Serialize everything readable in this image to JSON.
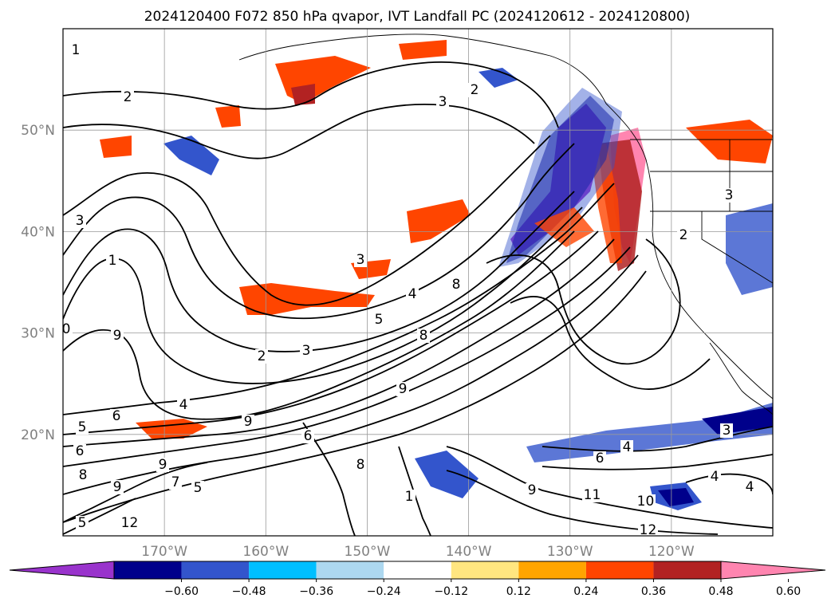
{
  "title": "2024120400 F072 850 hPa qvapor, IVT Landfall PC (2024120612 - 2024120800)",
  "map": {
    "lon_range": [
      -180,
      -110
    ],
    "lat_range": [
      10,
      60
    ],
    "lat_ticks": [
      {
        "value": 20,
        "label": "20°N"
      },
      {
        "value": 30,
        "label": "30°N"
      },
      {
        "value": 40,
        "label": "40°N"
      },
      {
        "value": 50,
        "label": "50°N"
      }
    ],
    "lon_ticks": [
      {
        "value": -170,
        "label": "170°W"
      },
      {
        "value": -160,
        "label": "160°W"
      },
      {
        "value": -150,
        "label": "150°W"
      },
      {
        "value": -140,
        "label": "140°W"
      },
      {
        "value": -130,
        "label": "130°W"
      },
      {
        "value": -120,
        "label": "120°W"
      }
    ],
    "grid": true
  },
  "colorbar": {
    "extend": "both",
    "colors": [
      "#9933cc",
      "#00008b",
      "#3355cc",
      "#00bfff",
      "#add8f0",
      "#ffffff",
      "#ffe680",
      "#ffa500",
      "#ff4500",
      "#b22222",
      "#ff85b0"
    ],
    "tick_labels": [
      "−0.60",
      "−0.48",
      "−0.36",
      "−0.24",
      "−0.12",
      "0.12",
      "0.24",
      "0.36",
      "0.48",
      "0.60"
    ]
  },
  "contour_labels": [
    "2",
    "3",
    "2",
    "1",
    "3",
    "3",
    "4",
    "5",
    "8",
    "8",
    "9",
    "6",
    "4",
    "9",
    "2",
    "3",
    "8",
    "6",
    "9",
    "9",
    "5",
    "6",
    "8",
    "9",
    "7",
    "5",
    "12",
    "0",
    "9",
    "4",
    "11",
    "10",
    "12",
    "5",
    "4",
    "3",
    "6",
    "4",
    "3",
    "2",
    "1",
    "1"
  ]
}
